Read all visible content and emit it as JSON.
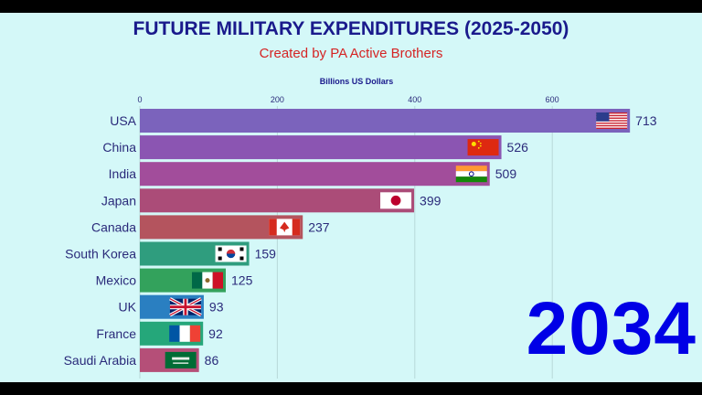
{
  "page": {
    "title": "FUTURE MILITARY EXPENDITURES (2025-2050)",
    "subtitle": "Created by PA Active Brothers",
    "year": "2034"
  },
  "colors": {
    "background": "#d4f8f8",
    "title": "#1a1a8c",
    "subtitle": "#d52424",
    "year": "#0000e6",
    "text": "#2a2a7a"
  },
  "chart_data": {
    "type": "bar",
    "orientation": "horizontal",
    "xlabel": "Billions US Dollars",
    "xlim": [
      0,
      720
    ],
    "ticks": [
      0,
      200,
      400,
      600
    ],
    "grid": true,
    "categories": [
      "USA",
      "China",
      "India",
      "Japan",
      "Canada",
      "South Korea",
      "Mexico",
      "UK",
      "France",
      "Saudi Arabia"
    ],
    "values": [
      713,
      526,
      509,
      399,
      237,
      159,
      125,
      93,
      92,
      86
    ],
    "bar_colors": [
      "#7b63bc",
      "#8b55b2",
      "#a24d9b",
      "#ab4c78",
      "#b4545e",
      "#2f9d7e",
      "#33a25c",
      "#2a7fc1",
      "#25a77a",
      "#b54f78"
    ],
    "flags": [
      "us-flag",
      "china-flag",
      "india-flag",
      "japan-flag",
      "canada-flag",
      "south-korea-flag",
      "mexico-flag",
      "uk-flag",
      "france-flag",
      "saudi-arabia-flag"
    ]
  }
}
